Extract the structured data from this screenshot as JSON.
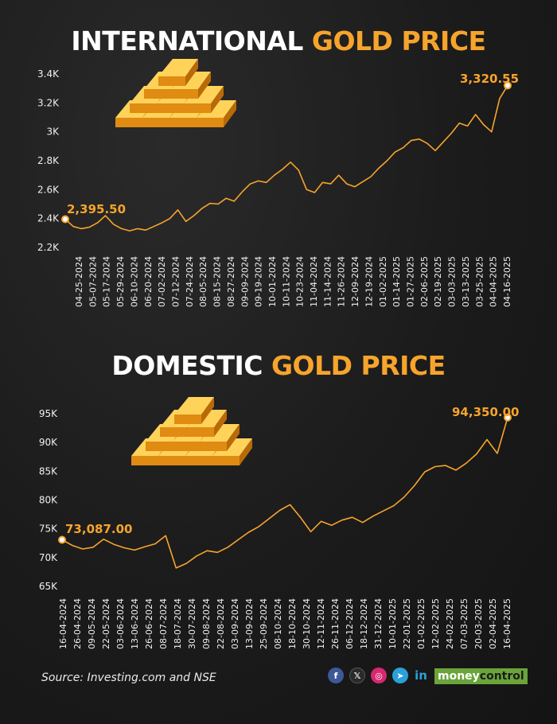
{
  "titles": {
    "intl_white": "INTERNATIONAL",
    "intl_gold": "GOLD PRICE",
    "dom_white": "DOMESTIC",
    "dom_gold": "GOLD PRICE"
  },
  "colors": {
    "accent": "#f7a42c",
    "background": "#1c1c1c",
    "text": "#ffffff",
    "brand": "#6aa43a"
  },
  "source": "Source: Investing.com and NSE",
  "brand": {
    "part1": "money",
    "part2": "control"
  },
  "social_icons": [
    "facebook-icon",
    "x-icon",
    "instagram-icon",
    "telegram-icon",
    "linkedin-icon"
  ],
  "chart_data": [
    {
      "type": "line",
      "title": "INTERNATIONAL GOLD PRICE",
      "y_ticks": [
        "2.2K",
        "2.4K",
        "2.6K",
        "2.8K",
        "3K",
        "3.2K",
        "3.4K"
      ],
      "ylim": [
        2200,
        3400
      ],
      "x_ticks": [
        "04-25-2024",
        "05-07-2024",
        "05-17-2024",
        "05-29-2024",
        "06-10-2024",
        "06-20-2024",
        "07-02-2024",
        "07-12-2024",
        "07-24-2024",
        "08-05-2024",
        "08-15-2024",
        "08-27-2024",
        "09-09-2024",
        "09-19-2024",
        "10-01-2024",
        "10-11-2024",
        "10-23-2024",
        "11-04-2024",
        "11-14-2024",
        "11-26-2024",
        "12-09-2024",
        "12-19-2024",
        "01-02-2025",
        "01-14-2025",
        "01-27-2025",
        "02-06-2025",
        "02-19-2025",
        "03-03-2025",
        "03-13-2025",
        "03-25-2025",
        "04-04-2025",
        "04-16-2025"
      ],
      "start_label": "2,395.50",
      "end_label": "3,320.55",
      "grid": false,
      "values": [
        2395.5,
        2345,
        2330,
        2340,
        2370,
        2420,
        2360,
        2330,
        2315,
        2330,
        2320,
        2345,
        2370,
        2400,
        2460,
        2380,
        2420,
        2470,
        2505,
        2500,
        2540,
        2520,
        2585,
        2640,
        2660,
        2650,
        2700,
        2740,
        2790,
        2735,
        2600,
        2580,
        2650,
        2640,
        2700,
        2640,
        2620,
        2655,
        2690,
        2750,
        2800,
        2860,
        2890,
        2940,
        2950,
        2920,
        2870,
        2930,
        2990,
        3060,
        3040,
        3120,
        3050,
        3000,
        3230,
        3320.55
      ]
    },
    {
      "type": "line",
      "title": "DOMESTIC GOLD PRICE",
      "y_ticks": [
        "65K",
        "70K",
        "75K",
        "80K",
        "85K",
        "90K",
        "95K"
      ],
      "ylim": [
        65000,
        95000
      ],
      "x_ticks": [
        "16-04-2024",
        "26-04-2024",
        "09-05-2024",
        "22-05-2024",
        "03-06-2024",
        "13-06-2024",
        "26-06-2024",
        "08-07-2024",
        "18-07-2024",
        "30-07-2024",
        "09-08-2024",
        "22-08-2024",
        "03-09-2024",
        "13-09-2024",
        "25-09-2024",
        "08-10-2024",
        "18-10-2024",
        "30-10-2024",
        "12-11-2024",
        "26-11-2024",
        "06-12-2024",
        "18-12-2024",
        "31-12-2024",
        "10-01-2025",
        "22-01-2025",
        "01-02-2025",
        "12-02-2025",
        "24-02-2025",
        "07-03-2025",
        "20-03-2025",
        "02-04-2025",
        "16-04-2025"
      ],
      "start_label": "73,087.00",
      "end_label": "94,350.00",
      "grid": false,
      "values": [
        73087,
        72100,
        71500,
        71800,
        73200,
        72300,
        71700,
        71300,
        71900,
        72400,
        73800,
        68200,
        69000,
        70300,
        71200,
        70900,
        71800,
        73100,
        74400,
        75400,
        76800,
        78200,
        79200,
        77000,
        74500,
        76300,
        75600,
        76500,
        77000,
        76100,
        77200,
        78100,
        79000,
        80500,
        82500,
        84900,
        85800,
        86000,
        85200,
        86400,
        88000,
        90500,
        88100,
        94350
      ]
    }
  ]
}
